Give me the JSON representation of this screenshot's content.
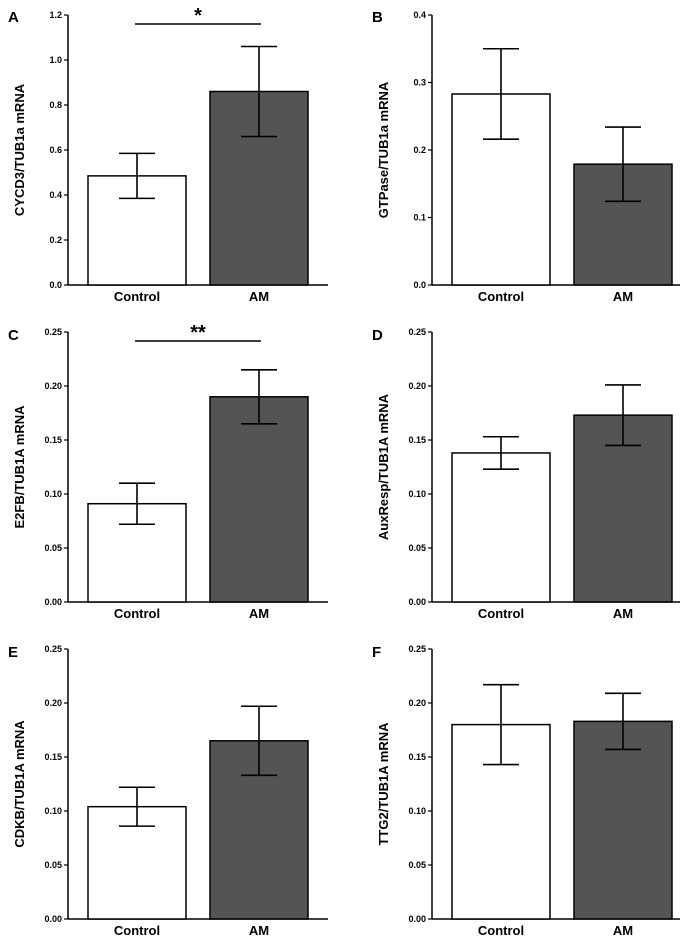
{
  "colors": {
    "control": "#ffffff",
    "treatment": "#545454",
    "stroke": "#000000"
  },
  "chart_data": [
    {
      "panel": "A",
      "type": "bar",
      "ylabel": "CYCD3/TUB1a mRNA",
      "categories": [
        "Control",
        "AM"
      ],
      "values": [
        0.485,
        0.86
      ],
      "errors": [
        0.1,
        0.2
      ],
      "ylim": [
        0,
        1.2
      ],
      "yticks": [
        0.0,
        0.2,
        0.4,
        0.6,
        0.8,
        1.0,
        1.2
      ],
      "tick_labels": [
        "0.0",
        "0.2",
        "0.4",
        "0.6",
        "0.8",
        "1.0",
        "1.2"
      ],
      "significance": "*"
    },
    {
      "panel": "B",
      "type": "bar",
      "ylabel": "GTPase/TUB1a mRNA",
      "categories": [
        "Control",
        "AM"
      ],
      "values": [
        0.283,
        0.179
      ],
      "errors": [
        0.067,
        0.055
      ],
      "ylim": [
        0,
        0.4
      ],
      "yticks": [
        0.0,
        0.1,
        0.2,
        0.3,
        0.4
      ],
      "tick_labels": [
        "0.0",
        "0.1",
        "0.2",
        "0.3",
        "0.4"
      ],
      "significance": ""
    },
    {
      "panel": "C",
      "type": "bar",
      "ylabel": "E2FB/TUB1A mRNA",
      "categories": [
        "Control",
        "AM"
      ],
      "values": [
        0.091,
        0.19
      ],
      "errors": [
        0.019,
        0.025
      ],
      "ylim": [
        0,
        0.25
      ],
      "yticks": [
        0.0,
        0.05,
        0.1,
        0.15,
        0.2,
        0.25
      ],
      "tick_labels": [
        "0.00",
        "0.05",
        "0.10",
        "0.15",
        "0.20",
        "0.25"
      ],
      "significance": "**"
    },
    {
      "panel": "D",
      "type": "bar",
      "ylabel": "AuxResp/TUB1A mRNA",
      "categories": [
        "Control",
        "AM"
      ],
      "values": [
        0.138,
        0.173
      ],
      "errors": [
        0.015,
        0.028
      ],
      "ylim": [
        0,
        0.25
      ],
      "yticks": [
        0.0,
        0.05,
        0.1,
        0.15,
        0.2,
        0.25
      ],
      "tick_labels": [
        "0.00",
        "0.05",
        "0.10",
        "0.15",
        "0.20",
        "0.25"
      ],
      "significance": ""
    },
    {
      "panel": "E",
      "type": "bar",
      "ylabel": "CDKB/TUB1A mRNA",
      "categories": [
        "Control",
        "AM"
      ],
      "values": [
        0.104,
        0.165
      ],
      "errors": [
        0.018,
        0.032
      ],
      "ylim": [
        0,
        0.25
      ],
      "yticks": [
        0.0,
        0.05,
        0.1,
        0.15,
        0.2,
        0.25
      ],
      "tick_labels": [
        "0.00",
        "0.05",
        "0.10",
        "0.15",
        "0.20",
        "0.25"
      ],
      "significance": ""
    },
    {
      "panel": "F",
      "type": "bar",
      "ylabel": "TTG2/TUB1A mRNA",
      "categories": [
        "Control",
        "AM"
      ],
      "values": [
        0.18,
        0.183
      ],
      "errors": [
        0.037,
        0.026
      ],
      "ylim": [
        0,
        0.25
      ],
      "yticks": [
        0.0,
        0.05,
        0.1,
        0.15,
        0.2,
        0.25
      ],
      "tick_labels": [
        "0.00",
        "0.05",
        "0.10",
        "0.15",
        "0.20",
        "0.25"
      ],
      "significance": ""
    }
  ]
}
